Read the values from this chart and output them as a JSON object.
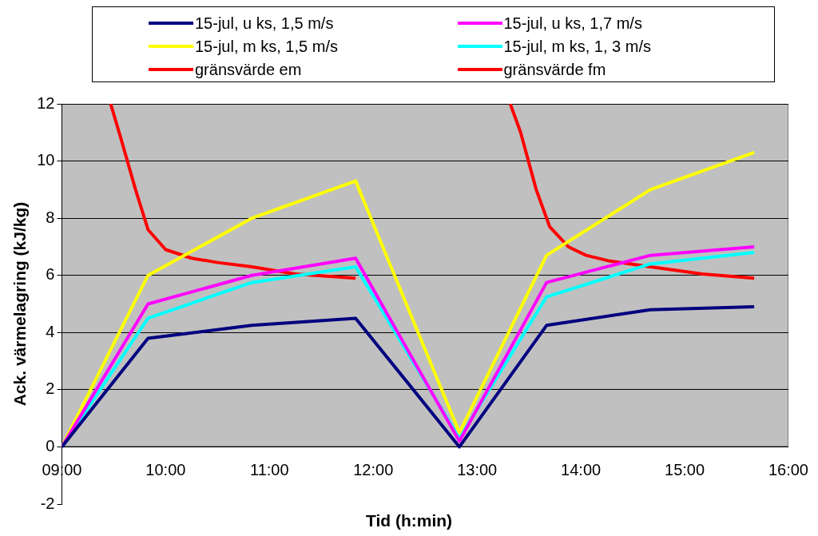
{
  "chart_data": {
    "type": "line",
    "xlabel": "Tid (h:min)",
    "ylabel": "Ack. värmelagring (kJ/kg)",
    "x": [
      9,
      9.83,
      10.83,
      11.83,
      12.83,
      13.67,
      14.67,
      15.67
    ],
    "series": [
      {
        "name": "15-jul, u ks, 1,5 m/s",
        "color": "#000080",
        "values": [
          0,
          3.8,
          4.25,
          4.5,
          0,
          4.25,
          4.8,
          4.9
        ]
      },
      {
        "name": "15-jul, u ks, 1,7 m/s",
        "color": "#ff00ff",
        "values": [
          0,
          5.0,
          6.0,
          6.6,
          0.2,
          5.75,
          6.7,
          7.0
        ]
      },
      {
        "name": "15-jul, m ks, 1,5 m/s",
        "color": "#ffff00",
        "values": [
          0,
          6.0,
          8.0,
          9.3,
          0.5,
          6.7,
          9.0,
          10.3
        ]
      },
      {
        "name": "15-jul, m ks, 1, 3 m/s",
        "color": "#00ffff",
        "values": [
          0,
          4.5,
          5.75,
          6.3,
          0.3,
          5.25,
          6.4,
          6.8
        ]
      },
      {
        "name": "gränsvärde em",
        "color": "#ff0000",
        "x": [
          9.47,
          9.56,
          9.71,
          9.83,
          10.0,
          10.25,
          10.5,
          10.83,
          11.25,
          11.83
        ],
        "values": [
          12,
          10.9,
          9,
          7.6,
          6.9,
          6.6,
          6.45,
          6.3,
          6.05,
          5.9
        ]
      },
      {
        "name": "gränsvärde fm",
        "color": "#ff0000",
        "x": [
          13.32,
          13.42,
          13.57,
          13.7,
          13.88,
          14.05,
          14.28,
          14.67,
          15.17,
          15.67
        ],
        "values": [
          12,
          11,
          9,
          7.7,
          7.0,
          6.7,
          6.5,
          6.3,
          6.05,
          5.9
        ]
      }
    ],
    "xlim": [
      9,
      16
    ],
    "xticks": [
      {
        "value": 9,
        "label": "09:00"
      },
      {
        "value": 10,
        "label": "10:00"
      },
      {
        "value": 11,
        "label": "11:00"
      },
      {
        "value": 12,
        "label": "12:00"
      },
      {
        "value": 13,
        "label": "13:00"
      },
      {
        "value": 14,
        "label": "14:00"
      },
      {
        "value": 15,
        "label": "15:00"
      },
      {
        "value": 16,
        "label": "16:00"
      }
    ],
    "ylim": [
      -2,
      12
    ],
    "yticks": [
      -2,
      0,
      2,
      4,
      6,
      8,
      10,
      12
    ],
    "grid": "y",
    "legend": "top",
    "marker": "none",
    "line_style": "solid"
  }
}
